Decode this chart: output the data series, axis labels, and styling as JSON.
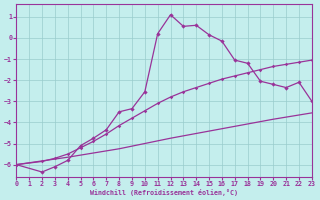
{
  "xlabel": "Windchill (Refroidissement éolien,°C)",
  "bg_color": "#c4eeed",
  "line_color": "#993399",
  "grid_color": "#99cccc",
  "ylim": [
    -6.6,
    1.6
  ],
  "xlim": [
    0,
    23
  ],
  "yticks": [
    1,
    0,
    -1,
    -2,
    -3,
    -4,
    -5,
    -6
  ],
  "xticks": [
    0,
    1,
    2,
    3,
    4,
    5,
    6,
    7,
    8,
    9,
    10,
    11,
    12,
    13,
    14,
    15,
    16,
    17,
    18,
    19,
    20,
    21,
    22,
    23
  ],
  "curve1_x": [
    0,
    2,
    3,
    4,
    5,
    6,
    7,
    8,
    9,
    10,
    11,
    12,
    13,
    14,
    15,
    16,
    17,
    18,
    19,
    20,
    21,
    22,
    23
  ],
  "curve1_y": [
    -6.0,
    -6.35,
    -6.1,
    -5.8,
    -5.1,
    -4.75,
    -4.35,
    -3.5,
    -3.35,
    -2.55,
    0.2,
    1.1,
    0.55,
    0.6,
    0.15,
    -0.15,
    -1.05,
    -1.2,
    -2.05,
    -2.2,
    -2.35,
    -2.1,
    -3.0
  ],
  "curve2_x": [
    0,
    2,
    3,
    4,
    5,
    6,
    7,
    8,
    9,
    10,
    11,
    12,
    13,
    14,
    15,
    16,
    17,
    18,
    19,
    20,
    21,
    22,
    23
  ],
  "curve2_y": [
    -6.0,
    -5.85,
    -5.7,
    -5.5,
    -5.2,
    -4.9,
    -4.55,
    -4.15,
    -3.8,
    -3.45,
    -3.1,
    -2.8,
    -2.55,
    -2.35,
    -2.15,
    -1.95,
    -1.8,
    -1.65,
    -1.5,
    -1.35,
    -1.25,
    -1.15,
    -1.05
  ],
  "curve3_x": [
    0,
    4,
    8,
    12,
    16,
    20,
    23
  ],
  "curve3_y": [
    -6.0,
    -5.65,
    -5.25,
    -4.75,
    -4.3,
    -3.85,
    -3.55
  ]
}
